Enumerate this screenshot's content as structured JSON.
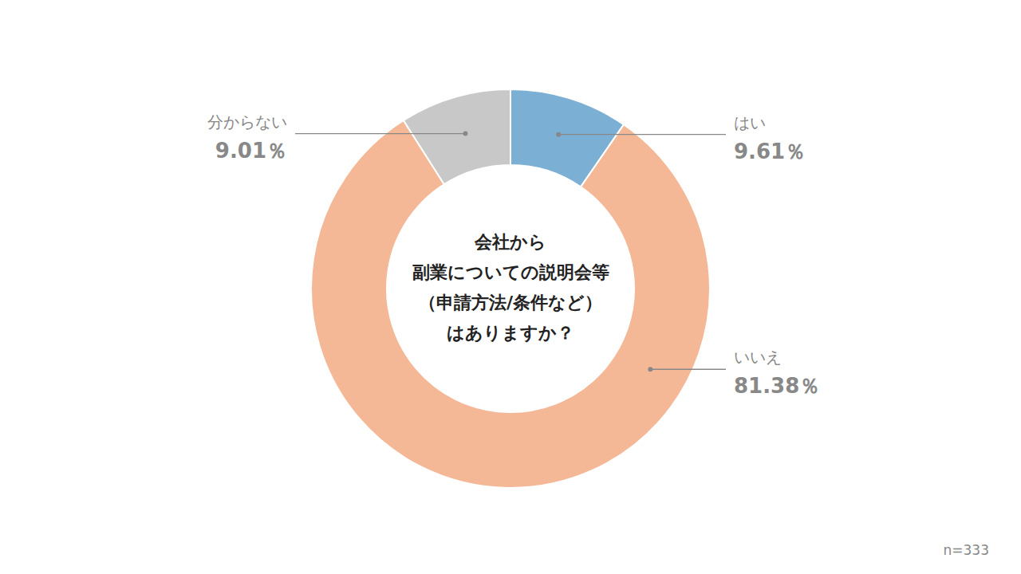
{
  "chart_data": {
    "type": "pie",
    "title": "会社から\n副業についての説明会等\n（申請方法/条件など）\nはありますか？",
    "categories": [
      "はい",
      "いいえ",
      "分からない"
    ],
    "values": [
      9.61,
      81.38,
      9.01
    ],
    "value_labels": [
      "9.61％",
      "81.38％",
      "9.01％"
    ],
    "colors": [
      "#7BAFD4",
      "#F5B896",
      "#C8C8C8"
    ],
    "data_labels": true,
    "annotations": [
      "n=333"
    ]
  }
}
